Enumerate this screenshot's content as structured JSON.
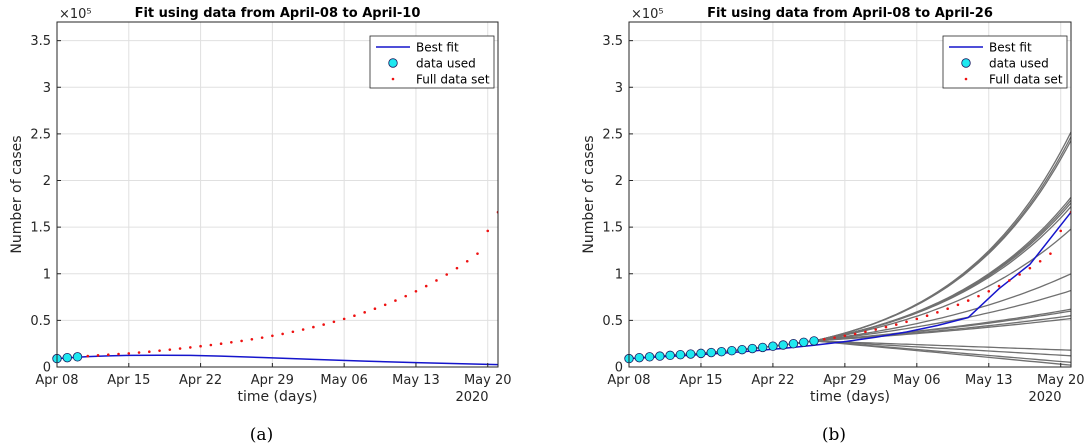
{
  "chart_data": [
    {
      "type": "line",
      "panel": "a",
      "caption": "(a)",
      "title": "Fit using data from April-08 to April-10",
      "xlabel": "time (days)",
      "ylabel": "Number of cases",
      "y_exponent": "×10⁵",
      "year_label": "2020",
      "x_tick_labels": [
        "Apr 08",
        "Apr 15",
        "Apr 22",
        "Apr 29",
        "May 06",
        "May 13",
        "May 20"
      ],
      "x_tick_days": [
        0,
        7,
        14,
        21,
        28,
        35,
        42
      ],
      "xlim_days": [
        0,
        43
      ],
      "y_tick_labels": [
        "0",
        "0.5",
        "1",
        "1.5",
        "2",
        "2.5",
        "3",
        "3.5"
      ],
      "y_tick_values": [
        0,
        0.5,
        1,
        1.5,
        2,
        2.5,
        3,
        3.5
      ],
      "ylim": [
        0,
        3.7
      ],
      "grid": true,
      "legend": {
        "placement": "top-right",
        "entries": [
          "Best fit",
          "data used",
          "Full data set"
        ]
      },
      "colors": {
        "best_fit": "#1515cc",
        "data_used": "#1ee8f0",
        "full_data": "#ee1111",
        "ensemble": "#707070"
      },
      "series": [
        {
          "name": "Best fit",
          "kind": "line",
          "x": [
            0,
            1,
            2,
            3,
            5,
            7,
            10,
            13,
            16,
            20,
            25,
            30,
            35,
            40,
            43
          ],
          "values": [
            0.09,
            0.098,
            0.105,
            0.111,
            0.119,
            0.124,
            0.127,
            0.124,
            0.117,
            0.102,
            0.082,
            0.063,
            0.047,
            0.033,
            0.026
          ]
        },
        {
          "name": "data used",
          "kind": "marker",
          "x": [
            0,
            1,
            2
          ],
          "values": [
            0.09,
            0.1,
            0.109
          ]
        },
        {
          "name": "Full data set",
          "kind": "dots",
          "x": [
            0,
            1,
            2,
            3,
            4,
            5,
            6,
            7,
            8,
            9,
            10,
            11,
            12,
            13,
            14,
            15,
            16,
            17,
            18,
            19,
            20,
            21,
            22,
            23,
            24,
            25,
            26,
            27,
            28,
            29,
            30,
            31,
            32,
            33,
            34,
            35,
            36,
            37,
            38,
            39,
            40,
            41,
            42,
            43
          ],
          "values": [
            0.09,
            0.1,
            0.109,
            0.117,
            0.125,
            0.132,
            0.139,
            0.146,
            0.155,
            0.164,
            0.175,
            0.186,
            0.198,
            0.21,
            0.223,
            0.236,
            0.25,
            0.265,
            0.28,
            0.297,
            0.315,
            0.335,
            0.355,
            0.378,
            0.402,
            0.428,
            0.455,
            0.485,
            0.516,
            0.55,
            0.586,
            0.625,
            0.667,
            0.712,
            0.76,
            0.812,
            0.868,
            0.928,
            0.992,
            1.06,
            1.134,
            1.215,
            1.46,
            1.66
          ]
        }
      ]
    },
    {
      "type": "line",
      "panel": "b",
      "caption": "(b)",
      "title": "Fit using data from April-08 to April-26",
      "xlabel": "time (days)",
      "ylabel": "Number of cases",
      "y_exponent": "×10⁵",
      "year_label": "2020",
      "x_tick_labels": [
        "Apr 08",
        "Apr 15",
        "Apr 22",
        "Apr 29",
        "May 06",
        "May 13",
        "May 20"
      ],
      "x_tick_days": [
        0,
        7,
        14,
        21,
        28,
        35,
        42
      ],
      "xlim_days": [
        0,
        43
      ],
      "y_tick_labels": [
        "0",
        "0.5",
        "1",
        "1.5",
        "2",
        "2.5",
        "3",
        "3.5"
      ],
      "y_tick_values": [
        0,
        0.5,
        1,
        1.5,
        2,
        2.5,
        3,
        3.5
      ],
      "ylim": [
        0,
        3.7
      ],
      "grid": true,
      "legend": {
        "placement": "top-right",
        "entries": [
          "Best fit",
          "data used",
          "Full data set"
        ]
      },
      "colors": {
        "best_fit": "#1515cc",
        "data_used": "#1ee8f0",
        "full_data": "#ee1111",
        "ensemble": "#707070"
      },
      "ensemble_end_values": [
        2.52,
        2.47,
        2.43,
        1.82,
        1.79,
        1.76,
        1.72,
        1.48,
        1.0,
        0.82,
        0.62,
        0.6,
        0.55,
        0.52,
        0.18,
        0.12,
        0.05,
        0.02
      ],
      "series": [
        {
          "name": "Best fit",
          "kind": "line",
          "x": [
            0,
            3,
            6,
            9,
            12,
            15,
            18,
            21,
            24,
            27,
            30,
            33,
            36,
            39,
            43
          ],
          "values": [
            0.09,
            0.108,
            0.127,
            0.148,
            0.172,
            0.2,
            0.233,
            0.272,
            0.318,
            0.375,
            0.445,
            0.53,
            0.84,
            1.1,
            1.66
          ]
        },
        {
          "name": "data used",
          "kind": "marker",
          "x": [
            0,
            1,
            2,
            3,
            4,
            5,
            6,
            7,
            8,
            9,
            10,
            11,
            12,
            13,
            14,
            15,
            16,
            17,
            18
          ],
          "values": [
            0.09,
            0.1,
            0.109,
            0.117,
            0.125,
            0.132,
            0.139,
            0.146,
            0.155,
            0.164,
            0.175,
            0.186,
            0.198,
            0.21,
            0.223,
            0.236,
            0.25,
            0.265,
            0.28
          ]
        },
        {
          "name": "Full data set",
          "kind": "dots",
          "x": [
            0,
            1,
            2,
            3,
            4,
            5,
            6,
            7,
            8,
            9,
            10,
            11,
            12,
            13,
            14,
            15,
            16,
            17,
            18,
            19,
            20,
            21,
            22,
            23,
            24,
            25,
            26,
            27,
            28,
            29,
            30,
            31,
            32,
            33,
            34,
            35,
            36,
            37,
            38,
            39,
            40,
            41,
            42,
            43
          ],
          "values": [
            0.09,
            0.1,
            0.109,
            0.117,
            0.125,
            0.132,
            0.139,
            0.146,
            0.155,
            0.164,
            0.175,
            0.186,
            0.198,
            0.21,
            0.223,
            0.236,
            0.25,
            0.265,
            0.28,
            0.297,
            0.315,
            0.335,
            0.355,
            0.378,
            0.402,
            0.428,
            0.455,
            0.485,
            0.516,
            0.55,
            0.586,
            0.625,
            0.667,
            0.712,
            0.76,
            0.812,
            0.868,
            0.928,
            0.992,
            1.06,
            1.134,
            1.215,
            1.46,
            1.66
          ]
        }
      ]
    }
  ]
}
